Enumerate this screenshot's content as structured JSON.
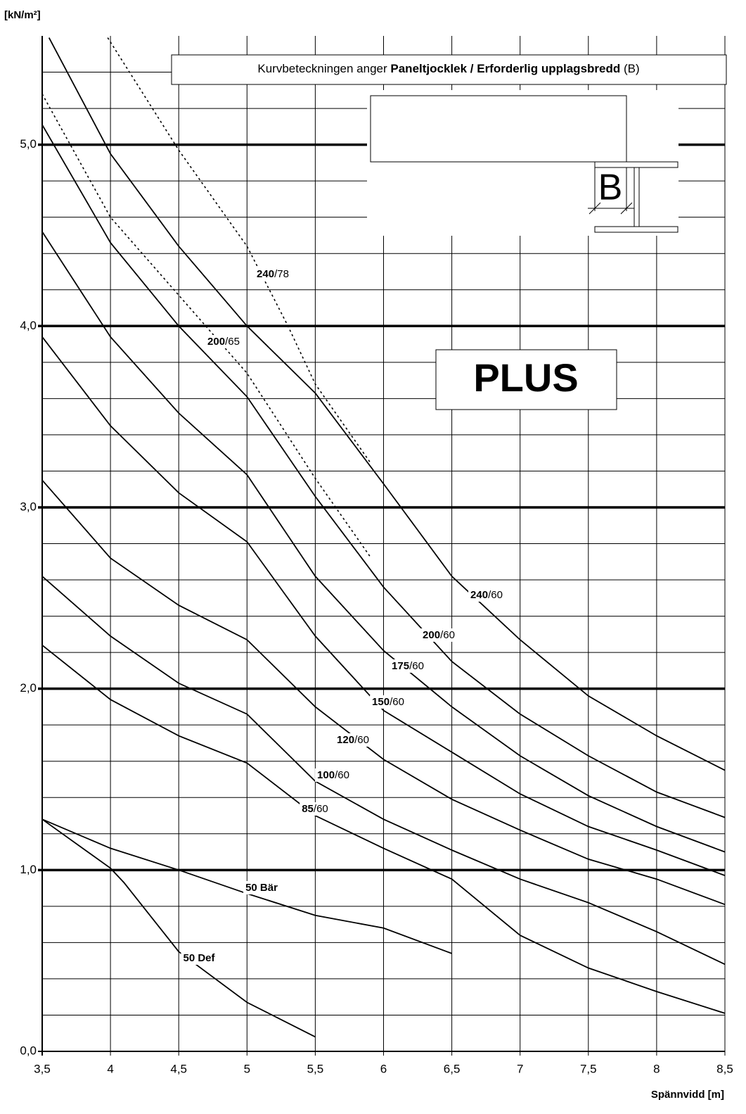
{
  "chart_data": {
    "type": "line",
    "y_axis_label": "[kN/m²]",
    "x_axis_label": "Spännvidd [m]",
    "annotation": [
      {
        "text": "Kurvbeteckningen anger ",
        "bold": false
      },
      {
        "text": "Paneltjocklek / Erforderlig upplagsbredd",
        "bold": true
      },
      {
        "text": " (B)",
        "bold": false
      }
    ],
    "badge": "PLUS",
    "diagram_label": "B",
    "xlim": [
      3.5,
      8.5
    ],
    "ylim": [
      0,
      5.6
    ],
    "xticks": [
      {
        "value": 3.5,
        "label": "3,5"
      },
      4,
      {
        "value": 4.5,
        "label": "4,5"
      },
      5,
      {
        "value": 5.5,
        "label": "5,5"
      },
      6,
      {
        "value": 6.5,
        "label": "6,5"
      },
      7,
      {
        "value": 7.5,
        "label": "7,5"
      },
      8,
      {
        "value": 8.5,
        "label": "8,5"
      }
    ],
    "yticks": [
      {
        "value": 0,
        "label": "0,0"
      },
      {
        "value": 1,
        "label": "1,0"
      },
      {
        "value": 2,
        "label": "2,0"
      },
      {
        "value": 3,
        "label": "3,0"
      },
      {
        "value": 4,
        "label": "4,0"
      },
      {
        "value": 5,
        "label": "5,0"
      }
    ],
    "y_minor_grid": [
      0.2,
      0.4,
      0.6,
      0.8,
      1.2,
      1.4,
      1.6,
      1.8,
      2.2,
      2.4,
      2.6,
      2.8,
      3.2,
      3.4,
      3.6,
      3.8,
      4.2,
      4.4,
      4.6,
      4.8,
      5.2,
      5.4
    ],
    "color": "#000000",
    "series": [
      {
        "label": [
          {
            "text": "240",
            "bold": true
          },
          {
            "text": "/78",
            "bold": false
          }
        ],
        "dashed": true,
        "x": [
          3.98,
          4.5,
          5,
          5.3,
          5.5,
          5.9
        ],
        "values": [
          5.59,
          4.97,
          4.44,
          4.0,
          3.68,
          3.25
        ]
      },
      {
        "label": [
          {
            "text": "200",
            "bold": true
          },
          {
            "text": "/65",
            "bold": false
          }
        ],
        "dashed": true,
        "x": [
          3.5,
          4,
          4.5,
          5,
          5.5,
          5.9
        ],
        "values": [
          5.28,
          4.6,
          4.17,
          3.74,
          3.16,
          2.73
        ]
      },
      {
        "label": [
          {
            "text": "240",
            "bold": true
          },
          {
            "text": "/60",
            "bold": false
          }
        ],
        "dashed": false,
        "x": [
          3.55,
          4,
          4.5,
          5,
          5.5,
          6,
          6.5,
          7,
          7.5,
          8,
          8.5
        ],
        "values": [
          5.59,
          4.95,
          4.44,
          4.0,
          3.63,
          3.13,
          2.62,
          2.27,
          1.96,
          1.74,
          1.55
        ]
      },
      {
        "label": [
          {
            "text": "200",
            "bold": true
          },
          {
            "text": "/60",
            "bold": false
          }
        ],
        "dashed": false,
        "x": [
          3.5,
          4,
          4.5,
          5,
          5.5,
          6,
          6.5,
          7,
          7.5,
          8,
          8.5
        ],
        "values": [
          5.11,
          4.46,
          4.0,
          3.61,
          3.06,
          2.56,
          2.15,
          1.86,
          1.63,
          1.43,
          1.29
        ]
      },
      {
        "label": [
          {
            "text": "175",
            "bold": true
          },
          {
            "text": "/60",
            "bold": false
          }
        ],
        "dashed": false,
        "x": [
          3.5,
          4,
          4.5,
          5,
          5.5,
          6,
          6.5,
          7,
          7.5,
          8,
          8.5
        ],
        "values": [
          4.52,
          3.94,
          3.52,
          3.18,
          2.62,
          2.21,
          1.9,
          1.63,
          1.41,
          1.24,
          1.1
        ]
      },
      {
        "label": [
          {
            "text": "150",
            "bold": true
          },
          {
            "text": "/60",
            "bold": false
          }
        ],
        "dashed": false,
        "x": [
          3.5,
          4,
          4.5,
          5,
          5.5,
          6,
          6.5,
          7,
          7.5,
          8,
          8.5
        ],
        "values": [
          3.94,
          3.45,
          3.08,
          2.81,
          2.29,
          1.88,
          1.65,
          1.42,
          1.24,
          1.11,
          0.97
        ]
      },
      {
        "label": [
          {
            "text": "120",
            "bold": true
          },
          {
            "text": "/60",
            "bold": false
          }
        ],
        "dashed": false,
        "x": [
          3.5,
          4,
          4.5,
          5,
          5.5,
          6,
          6.5,
          7,
          7.5,
          8,
          8.5
        ],
        "values": [
          3.15,
          2.72,
          2.46,
          2.27,
          1.9,
          1.61,
          1.39,
          1.22,
          1.06,
          0.95,
          0.81
        ]
      },
      {
        "label": [
          {
            "text": "100",
            "bold": true
          },
          {
            "text": "/60",
            "bold": false
          }
        ],
        "dashed": false,
        "x": [
          3.5,
          4,
          4.5,
          5,
          5.5,
          6,
          6.5,
          7,
          7.5,
          8,
          8.5
        ],
        "values": [
          2.62,
          2.29,
          2.03,
          1.86,
          1.49,
          1.28,
          1.11,
          0.95,
          0.82,
          0.66,
          0.48
        ]
      },
      {
        "label": [
          {
            "text": "85",
            "bold": true
          },
          {
            "text": "/60",
            "bold": false
          }
        ],
        "dashed": false,
        "x": [
          3.5,
          4,
          4.5,
          5,
          5.5,
          6,
          6.5,
          7,
          7.5,
          8,
          8.5
        ],
        "values": [
          2.24,
          1.94,
          1.74,
          1.59,
          1.3,
          1.12,
          0.95,
          0.64,
          0.46,
          0.33,
          0.21
        ]
      },
      {
        "label": [
          {
            "text": "50 Bär",
            "bold": true
          }
        ],
        "dashed": false,
        "x": [
          3.5,
          4,
          4.5,
          5,
          5.5,
          6,
          6.5
        ],
        "values": [
          1.28,
          1.12,
          1.0,
          0.87,
          0.75,
          0.68,
          0.54
        ]
      },
      {
        "label": [
          {
            "text": "50 Def",
            "bold": true
          }
        ],
        "dashed": false,
        "x": [
          3.5,
          4,
          4.1,
          4.5,
          5,
          5.5
        ],
        "values": [
          1.28,
          1.01,
          0.93,
          0.55,
          0.27,
          0.08
        ]
      }
    ]
  }
}
